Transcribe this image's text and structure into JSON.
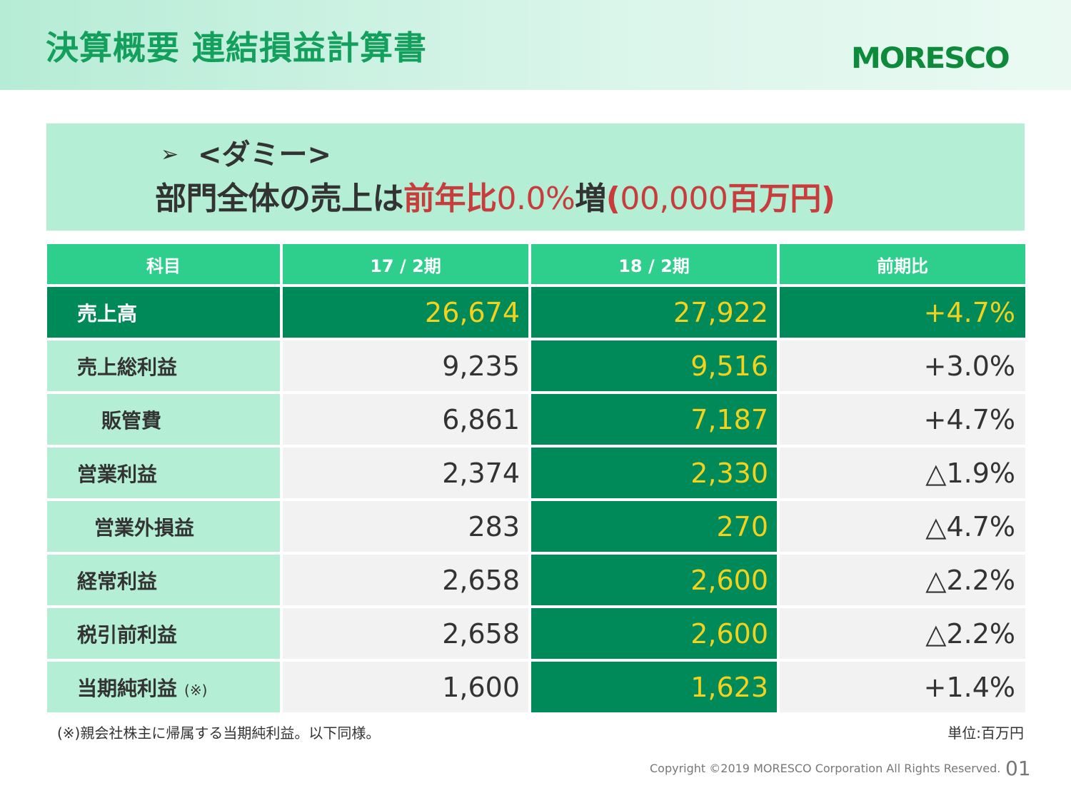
{
  "header": {
    "title": "決算概要 連結損益計算書",
    "logo_text": "MORESCO"
  },
  "summary": {
    "bullet": "➢",
    "line1": "<ダミー>",
    "line2_part1": "部門全体の売上は",
    "line2_part2": "前年比",
    "line2_part3": "0.0%",
    "line2_part4": "増",
    "line2_part5": "(",
    "line2_part6": "00,000",
    "line2_part7": "百万円",
    "line2_part8": ")"
  },
  "table": {
    "headers": {
      "subject": "科目",
      "prev_num": "17",
      "prev_sep": " / 2",
      "prev_suffix": "期",
      "curr_num": "18",
      "curr_sep": " / 2",
      "curr_suffix": "期",
      "yoy": "前期比"
    },
    "rows": [
      {
        "label": "売上高",
        "prev": "26,674",
        "curr": "27,922",
        "yoy": "+4.7%"
      },
      {
        "label": "売上総利益",
        "prev": "9,235",
        "curr": "9,516",
        "yoy": "+3.0%"
      },
      {
        "label": "販管費",
        "prev": "6,861",
        "curr": "7,187",
        "yoy": "+4.7%"
      },
      {
        "label": "営業利益",
        "prev": "2,374",
        "curr": "2,330",
        "yoy": "△1.9%"
      },
      {
        "label": "営業外損益",
        "prev": "283",
        "curr": "270",
        "yoy": "△4.7%"
      },
      {
        "label": "経常利益",
        "prev": "2,658",
        "curr": "2,600",
        "yoy": "△2.2%"
      },
      {
        "label": "税引前利益",
        "prev": "2,658",
        "curr": "2,600",
        "yoy": "△2.2%"
      },
      {
        "label": "当期純利益",
        "label_note": "(※)",
        "prev": "1,600",
        "curr": "1,623",
        "yoy": "+1.4%"
      }
    ]
  },
  "footnote": "(※)親会社株主に帰属する当期純利益。以下同様。",
  "unit_label": "単位:百万円",
  "copyright": "Copyright ©2019 MORESCO Corporation All Rights Reserved.",
  "page_number": "01",
  "colors": {
    "title_green": "#13a05c",
    "header_green": "#2ece8c",
    "dark_green": "#008a5a",
    "light_green": "#b3eed5",
    "yellow": "#f2d21c",
    "red": "#c93c3c"
  }
}
